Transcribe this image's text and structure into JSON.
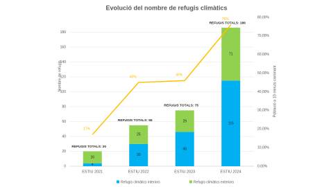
{
  "chart_data": {
    "type": "bar-line",
    "title": "Evolució del nombre de refugis climàtics",
    "y_label": "Nombre de refugis",
    "y2_label": "Població a 10 minuts caminant",
    "categories": [
      "ESTIU 2021",
      "ESTIU 2022",
      "ESTIU 2023",
      "ESTIU 2024"
    ],
    "series": [
      {
        "name": "Refugis climàtics interiors",
        "color": "#00b0f0",
        "values": [
          4,
          30,
          46,
          115
        ]
      },
      {
        "name": "Refugis climàtics exteriors",
        "color": "#92d050",
        "values": [
          16,
          25,
          29,
          71
        ]
      },
      {
        "color": "#ffc000",
        "axis": "y2",
        "values": [
          17,
          45,
          46,
          76
        ],
        "value_labels": [
          "17%",
          "45%",
          "46%",
          "76%"
        ]
      }
    ],
    "annotations": [
      "REFUGIS TOTALS: 20",
      "REFUGIS TOTALS: 55",
      "REFUGIS TOTALS: 75",
      "REFUGIS TOTALS: 186"
    ],
    "ylim": [
      0,
      200
    ],
    "yticks": [
      0,
      20,
      40,
      60,
      80,
      100,
      120,
      140,
      160,
      180
    ],
    "y2lim": [
      0,
      80
    ],
    "y2ticks": [
      {
        "value": 0,
        "label": "0,00%"
      },
      {
        "value": 10,
        "label": "10,00%"
      },
      {
        "value": 20,
        "label": "20,00%"
      },
      {
        "value": 30,
        "label": "30,00%"
      },
      {
        "value": 40,
        "label": "40,00%"
      },
      {
        "value": 50,
        "label": "50,00%"
      },
      {
        "value": 60,
        "label": "60,00%"
      },
      {
        "value": 70,
        "label": "70,00%"
      },
      {
        "value": 80,
        "label": "80,00%"
      }
    ],
    "grid": true,
    "legend": "bottom"
  }
}
